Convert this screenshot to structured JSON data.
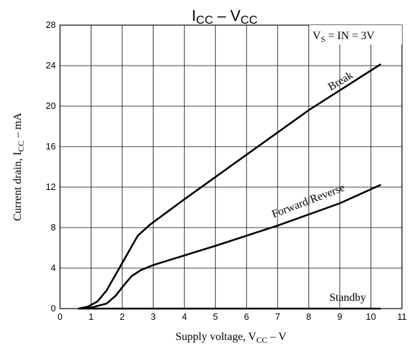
{
  "chart_data": {
    "type": "line",
    "title": {
      "main": "I",
      "sub": "CC",
      "mid": " – V",
      "sub2": "CC"
    },
    "xlabel": {
      "pre": "Supply voltage, V",
      "sub": "CC",
      "post": " – V"
    },
    "ylabel": {
      "pre": "Current drain, I",
      "sub": "CC",
      "post": " – mA"
    },
    "condition": {
      "pre": "V",
      "sub": "S",
      "post": " = IN = 3V"
    },
    "xlim": [
      0,
      11
    ],
    "ylim": [
      0,
      28
    ],
    "x_ticks": [
      "0",
      "1",
      "2",
      "3",
      "4",
      "5",
      "6",
      "7",
      "8",
      "9",
      "10",
      "11"
    ],
    "y_ticks": [
      "0",
      "4",
      "8",
      "12",
      "16",
      "20",
      "24",
      "28"
    ],
    "grid": true,
    "series": [
      {
        "name": "Break",
        "points": [
          [
            0.6,
            0
          ],
          [
            0.9,
            0.2
          ],
          [
            1.2,
            0.7
          ],
          [
            1.5,
            1.8
          ],
          [
            2.0,
            4.5
          ],
          [
            2.5,
            7.2
          ],
          [
            2.9,
            8.3
          ],
          [
            4,
            10.8
          ],
          [
            6,
            15.2
          ],
          [
            8,
            19.6
          ],
          [
            10.3,
            24.1
          ]
        ]
      },
      {
        "name": "Forward/Reverse",
        "points": [
          [
            0.6,
            0
          ],
          [
            1.0,
            0.1
          ],
          [
            1.5,
            0.5
          ],
          [
            1.8,
            1.3
          ],
          [
            2.0,
            2.1
          ],
          [
            2.3,
            3.2
          ],
          [
            2.6,
            3.8
          ],
          [
            3.0,
            4.3
          ],
          [
            5,
            6.2
          ],
          [
            7,
            8.2
          ],
          [
            9,
            10.4
          ],
          [
            10.3,
            12.2
          ]
        ]
      },
      {
        "name": "Standby",
        "points": [
          [
            0.6,
            0
          ],
          [
            10.3,
            0
          ]
        ]
      }
    ]
  }
}
